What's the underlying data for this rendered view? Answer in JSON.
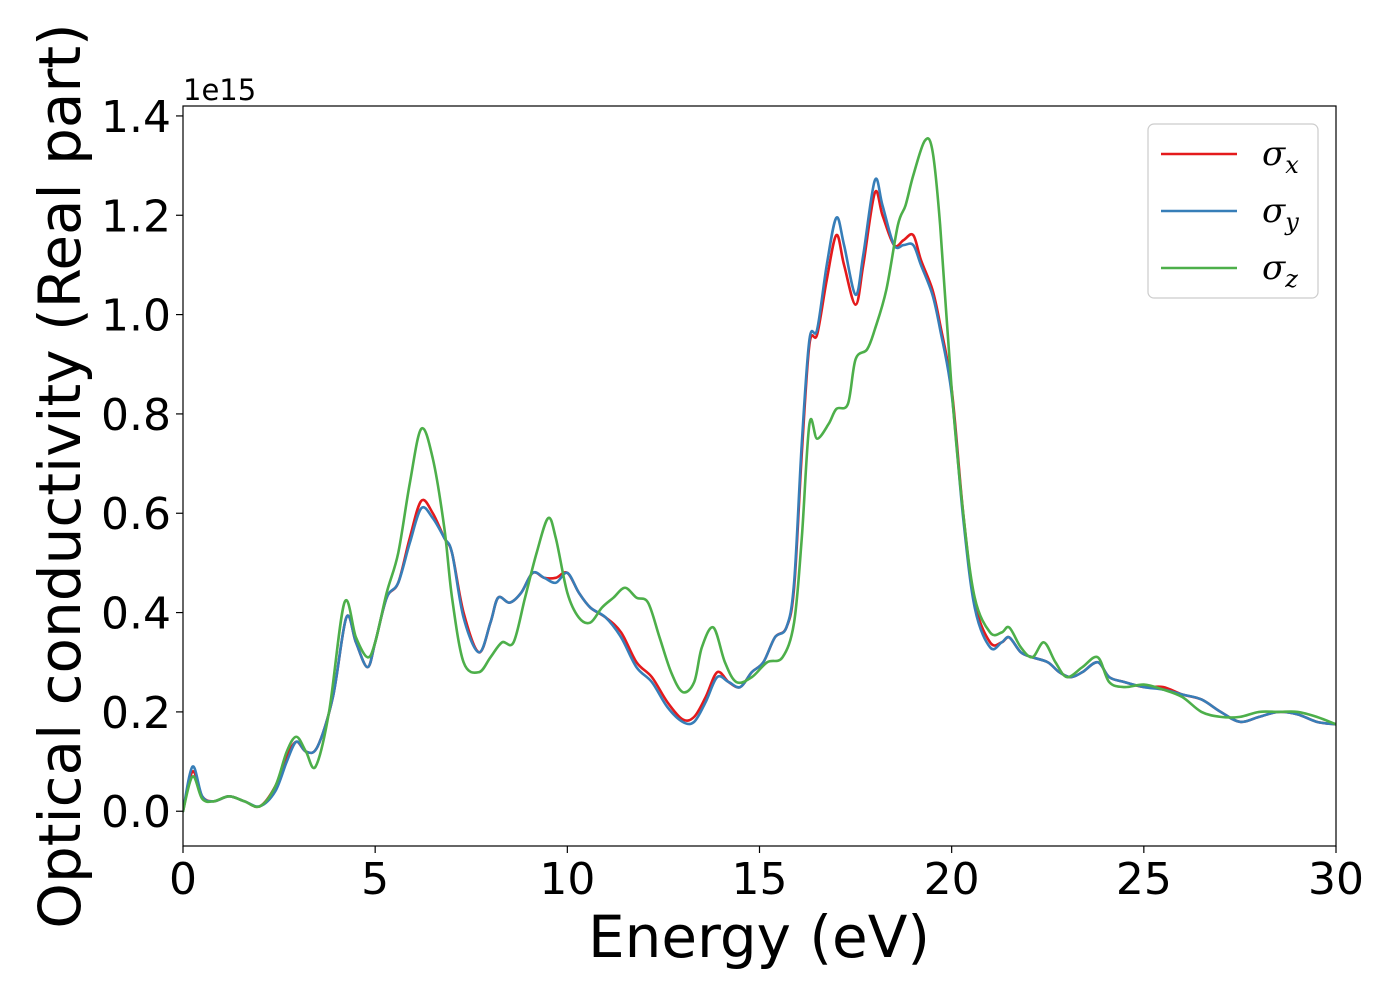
{
  "chart_data": {
    "type": "line",
    "xlabel": "Energy (eV)",
    "ylabel": "Optical conductivity (Real part)",
    "y_offset_label": "1e15",
    "y_multiplier": 1000000000000000.0,
    "xlim": [
      0,
      30
    ],
    "ylim": [
      -0.07,
      1.42
    ],
    "xticks": [
      0,
      5,
      10,
      15,
      20,
      25,
      30
    ],
    "xtick_labels": [
      "0",
      "5",
      "10",
      "15",
      "20",
      "25",
      "30"
    ],
    "yticks": [
      0.0,
      0.2,
      0.4,
      0.6,
      0.8,
      1.0,
      1.2,
      1.4
    ],
    "ytick_labels": [
      "0.0",
      "0.2",
      "0.4",
      "0.6",
      "0.8",
      "1.0",
      "1.2",
      "1.4"
    ],
    "grid": false,
    "legend_position": "top-right",
    "series": [
      {
        "name": "σ",
        "subscript": "x",
        "color": "#e41a1c",
        "x": [
          0,
          0.25,
          0.5,
          0.8,
          1.2,
          1.6,
          2.0,
          2.4,
          2.7,
          2.95,
          3.2,
          3.5,
          3.9,
          4.25,
          4.5,
          4.8,
          5.0,
          5.3,
          5.6,
          5.9,
          6.2,
          6.5,
          6.8,
          7.0,
          7.3,
          7.7,
          8.0,
          8.2,
          8.5,
          8.8,
          9.1,
          9.4,
          9.7,
          10.0,
          10.3,
          10.6,
          11.0,
          11.4,
          11.8,
          12.2,
          12.6,
          13.0,
          13.3,
          13.6,
          13.9,
          14.2,
          14.5,
          14.8,
          15.1,
          15.4,
          15.7,
          15.9,
          16.1,
          16.3,
          16.5,
          16.75,
          17.0,
          17.2,
          17.5,
          17.7,
          18.0,
          18.2,
          18.5,
          18.75,
          19.0,
          19.2,
          19.5,
          19.7,
          20.0,
          20.3,
          20.6,
          21.0,
          21.3,
          21.5,
          21.8,
          22.1,
          22.5,
          22.8,
          23.1,
          23.4,
          23.8,
          24.1,
          24.5,
          25.0,
          25.5,
          26.0,
          26.5,
          27.0,
          27.5,
          28.0,
          28.5,
          29.0,
          29.5,
          30.0
        ],
        "values": [
          0.0,
          0.08,
          0.03,
          0.02,
          0.03,
          0.02,
          0.01,
          0.05,
          0.11,
          0.14,
          0.12,
          0.13,
          0.23,
          0.39,
          0.34,
          0.29,
          0.34,
          0.43,
          0.46,
          0.55,
          0.625,
          0.6,
          0.55,
          0.52,
          0.4,
          0.32,
          0.38,
          0.43,
          0.42,
          0.44,
          0.48,
          0.47,
          0.47,
          0.48,
          0.44,
          0.41,
          0.39,
          0.36,
          0.3,
          0.27,
          0.22,
          0.185,
          0.19,
          0.23,
          0.28,
          0.26,
          0.25,
          0.28,
          0.3,
          0.35,
          0.37,
          0.45,
          0.72,
          0.94,
          0.96,
          1.07,
          1.16,
          1.1,
          1.02,
          1.1,
          1.245,
          1.2,
          1.14,
          1.15,
          1.16,
          1.11,
          1.05,
          0.98,
          0.85,
          0.6,
          0.42,
          0.34,
          0.34,
          0.35,
          0.32,
          0.31,
          0.3,
          0.28,
          0.27,
          0.28,
          0.3,
          0.27,
          0.26,
          0.25,
          0.25,
          0.235,
          0.225,
          0.2,
          0.18,
          0.19,
          0.2,
          0.195,
          0.18,
          0.175
        ]
      },
      {
        "name": "σ",
        "subscript": "y",
        "color": "#377eb8",
        "x": [
          0,
          0.25,
          0.5,
          0.8,
          1.2,
          1.6,
          2.0,
          2.4,
          2.7,
          2.95,
          3.2,
          3.5,
          3.9,
          4.25,
          4.5,
          4.8,
          5.0,
          5.3,
          5.6,
          5.9,
          6.2,
          6.5,
          6.8,
          7.0,
          7.3,
          7.7,
          8.0,
          8.2,
          8.5,
          8.8,
          9.1,
          9.4,
          9.7,
          10.0,
          10.3,
          10.6,
          11.0,
          11.4,
          11.8,
          12.2,
          12.6,
          13.0,
          13.3,
          13.6,
          13.9,
          14.2,
          14.5,
          14.8,
          15.1,
          15.4,
          15.7,
          15.9,
          16.1,
          16.3,
          16.5,
          16.75,
          17.0,
          17.2,
          17.5,
          17.7,
          18.0,
          18.2,
          18.5,
          18.75,
          19.0,
          19.2,
          19.5,
          19.7,
          20.0,
          20.3,
          20.6,
          21.0,
          21.3,
          21.5,
          21.8,
          22.1,
          22.5,
          22.8,
          23.1,
          23.4,
          23.8,
          24.1,
          24.5,
          25.0,
          25.5,
          26.0,
          26.5,
          27.0,
          27.5,
          28.0,
          28.5,
          29.0,
          29.5,
          30.0
        ],
        "values": [
          0.0,
          0.09,
          0.03,
          0.02,
          0.03,
          0.02,
          0.01,
          0.04,
          0.1,
          0.14,
          0.12,
          0.13,
          0.23,
          0.39,
          0.34,
          0.29,
          0.34,
          0.43,
          0.46,
          0.54,
          0.61,
          0.59,
          0.55,
          0.52,
          0.39,
          0.32,
          0.38,
          0.43,
          0.42,
          0.44,
          0.48,
          0.47,
          0.46,
          0.48,
          0.44,
          0.41,
          0.39,
          0.35,
          0.29,
          0.26,
          0.21,
          0.18,
          0.18,
          0.22,
          0.27,
          0.26,
          0.25,
          0.28,
          0.3,
          0.35,
          0.37,
          0.46,
          0.74,
          0.95,
          0.97,
          1.1,
          1.195,
          1.14,
          1.04,
          1.12,
          1.27,
          1.22,
          1.14,
          1.14,
          1.14,
          1.1,
          1.04,
          0.97,
          0.84,
          0.59,
          0.41,
          0.33,
          0.34,
          0.35,
          0.32,
          0.31,
          0.3,
          0.28,
          0.27,
          0.28,
          0.3,
          0.27,
          0.26,
          0.25,
          0.245,
          0.235,
          0.225,
          0.2,
          0.18,
          0.19,
          0.2,
          0.195,
          0.18,
          0.175
        ]
      },
      {
        "name": "σ",
        "subscript": "z",
        "color": "#4daf4a",
        "x": [
          0,
          0.25,
          0.5,
          0.8,
          1.2,
          1.6,
          2.0,
          2.4,
          2.7,
          2.95,
          3.2,
          3.45,
          3.8,
          4.2,
          4.5,
          4.8,
          5.0,
          5.3,
          5.6,
          5.9,
          6.2,
          6.5,
          6.8,
          7.0,
          7.3,
          7.7,
          8.0,
          8.3,
          8.6,
          8.9,
          9.2,
          9.5,
          9.7,
          10.0,
          10.3,
          10.6,
          10.9,
          11.2,
          11.5,
          11.8,
          12.1,
          12.4,
          12.7,
          13.0,
          13.3,
          13.5,
          13.8,
          14.1,
          14.4,
          14.8,
          15.2,
          15.6,
          15.9,
          16.1,
          16.3,
          16.5,
          16.8,
          17.0,
          17.3,
          17.5,
          17.8,
          18.0,
          18.3,
          18.6,
          18.8,
          19.0,
          19.3,
          19.5,
          19.7,
          20.0,
          20.3,
          20.6,
          21.0,
          21.3,
          21.5,
          21.8,
          22.1,
          22.4,
          22.7,
          23.0,
          23.4,
          23.8,
          24.1,
          24.5,
          25.0,
          25.5,
          26.0,
          26.5,
          27.0,
          27.5,
          28.0,
          28.5,
          29.0,
          29.5,
          30.0
        ],
        "values": [
          0.0,
          0.07,
          0.025,
          0.02,
          0.03,
          0.02,
          0.01,
          0.05,
          0.12,
          0.15,
          0.12,
          0.09,
          0.2,
          0.42,
          0.35,
          0.31,
          0.34,
          0.44,
          0.52,
          0.66,
          0.77,
          0.71,
          0.57,
          0.43,
          0.3,
          0.28,
          0.31,
          0.34,
          0.34,
          0.43,
          0.52,
          0.59,
          0.55,
          0.44,
          0.39,
          0.38,
          0.41,
          0.43,
          0.45,
          0.43,
          0.42,
          0.35,
          0.28,
          0.24,
          0.26,
          0.33,
          0.37,
          0.3,
          0.26,
          0.27,
          0.3,
          0.31,
          0.38,
          0.55,
          0.78,
          0.75,
          0.78,
          0.81,
          0.82,
          0.91,
          0.93,
          0.97,
          1.05,
          1.18,
          1.22,
          1.28,
          1.35,
          1.33,
          1.18,
          0.85,
          0.6,
          0.43,
          0.36,
          0.36,
          0.37,
          0.33,
          0.31,
          0.34,
          0.3,
          0.27,
          0.29,
          0.31,
          0.26,
          0.25,
          0.255,
          0.245,
          0.23,
          0.2,
          0.19,
          0.19,
          0.2,
          0.2,
          0.2,
          0.19,
          0.175
        ]
      }
    ]
  }
}
